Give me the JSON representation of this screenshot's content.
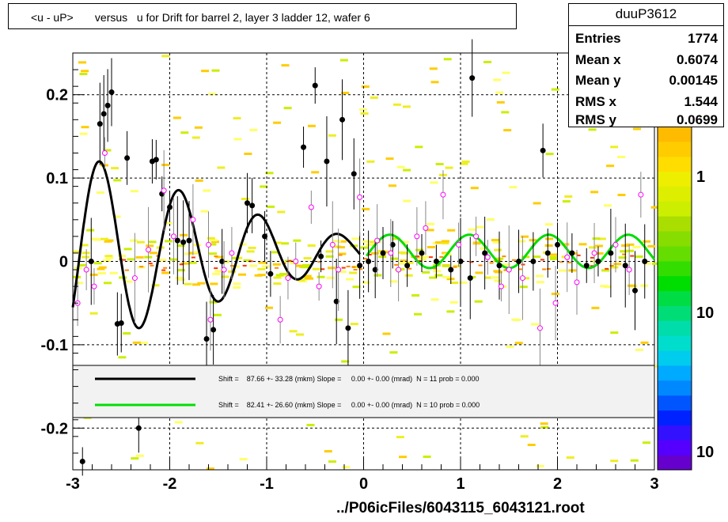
{
  "title": "<u - uP>       versus   u for Drift for barrel 2, layer 3 ladder 12, wafer 6",
  "stats": {
    "name": "duuP3612",
    "rows": [
      {
        "label": "Entries",
        "value": "1774"
      },
      {
        "label": "Mean x",
        "value": "0.6074"
      },
      {
        "label": "Mean y",
        "value": "0.00145"
      },
      {
        "label": "RMS x",
        "value": "1.544"
      },
      {
        "label": "RMS y",
        "value": "0.0699"
      }
    ]
  },
  "x_title": "../P06icFiles/6043115_6043121.root",
  "palette_labels": [
    "1",
    "10",
    "10"
  ],
  "legend": {
    "entries": [
      {
        "text": "Shift =    87.66 +- 33.28 (mkm) Slope =     0.00 +- 0.00 (mrad)  N = 11 prob = 0.000",
        "color": "#000000"
      },
      {
        "text": "Shift =    82.41 +- 26.60 (mkm) Slope =     0.00 +- 0.00 (mrad)  N = 10 prob = 0.000",
        "color": "#00dd00"
      }
    ]
  },
  "chart_data": {
    "type": "scatter",
    "xlim": [
      -3,
      3
    ],
    "ylim": [
      -0.25,
      0.25
    ],
    "x_ticks": [
      "-3",
      "-2",
      "-1",
      "0",
      "1",
      "2",
      "3"
    ],
    "y_ticks": [
      "-0.2",
      "-0.1",
      "0",
      "0.1",
      "0.2"
    ],
    "grid": true,
    "series": [
      {
        "marker": "filled-circle",
        "color": "#000000",
        "points": [
          [
            -2.9,
            -0.24
          ],
          [
            -2.81,
            0.0
          ],
          [
            -2.72,
            0.165
          ],
          [
            -2.68,
            0.177
          ],
          [
            -2.64,
            0.187
          ],
          [
            -2.6,
            0.203
          ],
          [
            -2.54,
            -0.075
          ],
          [
            -2.5,
            -0.074
          ],
          [
            -2.44,
            0.124
          ],
          [
            -2.32,
            -0.2
          ],
          [
            -2.18,
            0.12
          ],
          [
            -2.14,
            0.122
          ],
          [
            -2.08,
            0.081
          ],
          [
            -2.0,
            0.065
          ],
          [
            -1.92,
            0.025
          ],
          [
            -1.86,
            0.023
          ],
          [
            -1.8,
            0.025
          ],
          [
            -1.62,
            -0.093
          ],
          [
            -1.55,
            -0.082
          ],
          [
            -1.46,
            0.0
          ],
          [
            -1.2,
            0.07
          ],
          [
            -1.15,
            0.067
          ],
          [
            -1.02,
            0.03
          ],
          [
            -0.96,
            -0.015
          ],
          [
            -0.62,
            0.137
          ],
          [
            -0.5,
            0.211
          ],
          [
            -0.44,
            0.006
          ],
          [
            -0.38,
            0.12
          ],
          [
            -0.28,
            -0.048
          ],
          [
            -0.22,
            0.17
          ],
          [
            -0.16,
            -0.08
          ],
          [
            -0.1,
            0.105
          ],
          [
            -0.04,
            -0.005
          ],
          [
            0.05,
            0.0
          ],
          [
            0.12,
            -0.01
          ],
          [
            0.2,
            0.01
          ],
          [
            0.3,
            0.02
          ],
          [
            0.45,
            -0.005
          ],
          [
            0.6,
            0.01
          ],
          [
            0.75,
            0.0
          ],
          [
            0.9,
            -0.01
          ],
          [
            1.0,
            0.0
          ],
          [
            1.1,
            -0.02
          ],
          [
            1.12,
            0.22
          ],
          [
            1.25,
            0.01
          ],
          [
            1.4,
            -0.005
          ],
          [
            1.6,
            0.0
          ],
          [
            1.75,
            0.0
          ],
          [
            1.85,
            0.133
          ],
          [
            1.9,
            0.01
          ],
          [
            2.0,
            0.02
          ],
          [
            2.15,
            0.01
          ],
          [
            2.3,
            -0.005
          ],
          [
            2.42,
            0.0
          ],
          [
            2.55,
            0.01
          ],
          [
            2.7,
            -0.005
          ],
          [
            2.8,
            -0.035
          ],
          [
            2.9,
            0.0
          ]
        ]
      },
      {
        "marker": "open-circle",
        "color": "#ff00ff",
        "points": [
          [
            -2.95,
            -0.05
          ],
          [
            -2.86,
            -0.01
          ],
          [
            -2.78,
            -0.03
          ],
          [
            -2.67,
            0.13
          ],
          [
            -2.36,
            -0.02
          ],
          [
            -2.22,
            0.014
          ],
          [
            -2.06,
            0.085
          ],
          [
            -1.96,
            0.03
          ],
          [
            -1.76,
            0.05
          ],
          [
            -1.6,
            0.02
          ],
          [
            -1.58,
            -0.07
          ],
          [
            -1.44,
            -0.01
          ],
          [
            -1.36,
            0.01
          ],
          [
            -0.86,
            -0.07
          ],
          [
            -0.78,
            -0.02
          ],
          [
            -0.7,
            0.0
          ],
          [
            -0.54,
            0.065
          ],
          [
            -0.46,
            -0.03
          ],
          [
            -0.32,
            0.02
          ],
          [
            -0.26,
            -0.01
          ],
          [
            -0.04,
            0.077
          ],
          [
            0.14,
            0.025
          ],
          [
            0.28,
            0.01
          ],
          [
            0.36,
            -0.01
          ],
          [
            0.55,
            0.03
          ],
          [
            0.64,
            0.04
          ],
          [
            0.82,
            0.08
          ],
          [
            0.98,
            0.02
          ],
          [
            1.16,
            0.03
          ],
          [
            1.28,
            0.005
          ],
          [
            1.42,
            -0.03
          ],
          [
            1.5,
            -0.01
          ],
          [
            1.64,
            -0.02
          ],
          [
            1.82,
            -0.08
          ],
          [
            1.98,
            -0.05
          ],
          [
            2.1,
            0.005
          ],
          [
            2.2,
            -0.025
          ],
          [
            2.38,
            0.01
          ],
          [
            2.6,
            0.02
          ],
          [
            2.74,
            -0.01
          ],
          [
            2.86,
            0.08
          ]
        ]
      }
    ],
    "fits": [
      {
        "name": "Shift =    87.66 +- 33.28 (mkm) Slope =     0.00 +- 0.00 (mrad)  N = 11 prob = 0.000",
        "color": "#000000",
        "x_range": [
          -3,
          -0.03
        ]
      },
      {
        "name": "Shift =    82.41 +- 26.60 (mkm) Slope =     0.00 +- 0.00 (mrad)  N = 10 prob = 0.000",
        "color": "#00dd00",
        "x_range": [
          0.03,
          3
        ]
      }
    ]
  }
}
